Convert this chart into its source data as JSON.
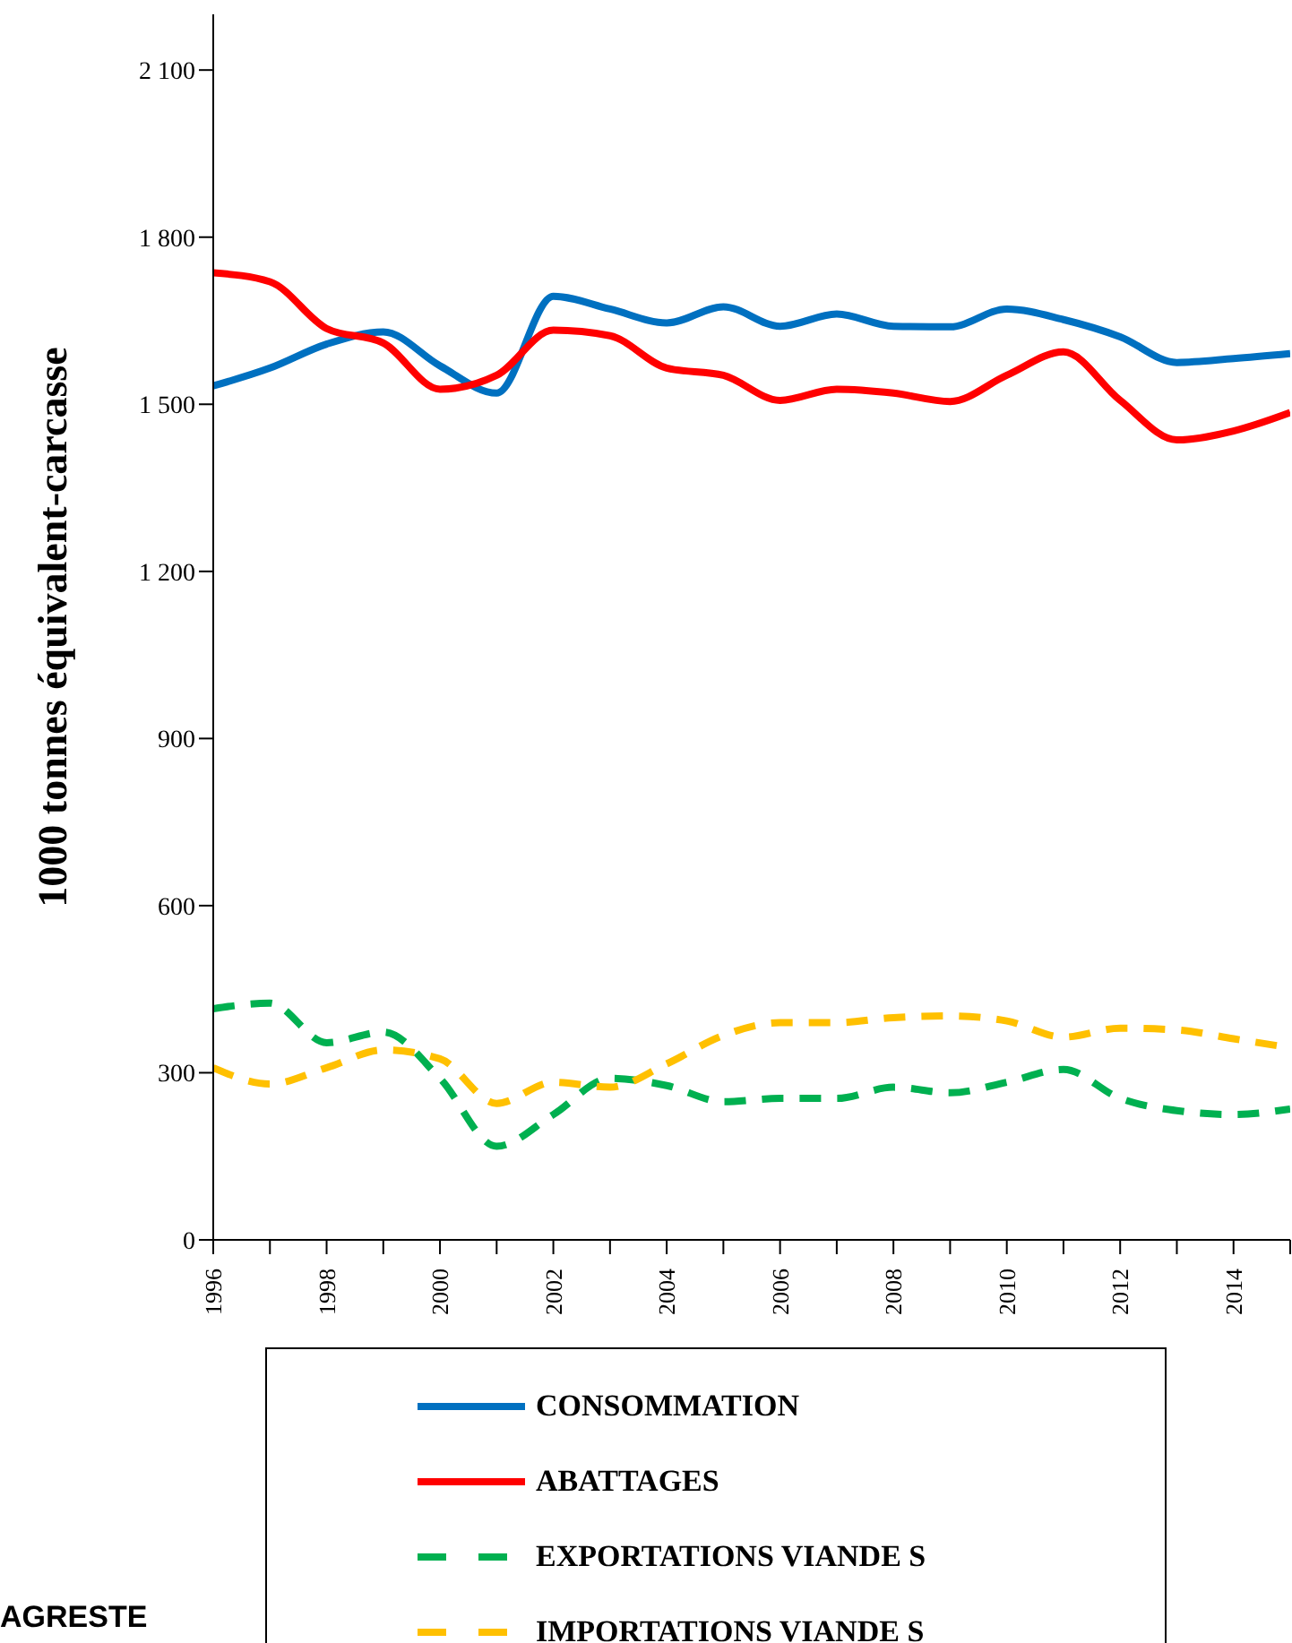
{
  "chart_data": {
    "type": "line",
    "ylabel": "1000 tonnes équivalent-carcasse",
    "x": [
      1996,
      1997,
      1998,
      1999,
      2000,
      2001,
      2002,
      2003,
      2004,
      2005,
      2006,
      2007,
      2008,
      2009,
      2010,
      2011,
      2012,
      2013,
      2014,
      2015
    ],
    "series": [
      {
        "name": "CONSOMMATION",
        "color": "#0070c0",
        "line_style": "solid",
        "values": [
          1533,
          1565,
          1608,
          1630,
          1569,
          1520,
          1694,
          1671,
          1646,
          1675,
          1640,
          1662,
          1640,
          1639,
          1671,
          1652,
          1621,
          1575,
          1582,
          1591
        ]
      },
      {
        "name": "ABATTAGES",
        "color": "#ff0000",
        "line_style": "solid",
        "values": [
          1736,
          1720,
          1636,
          1610,
          1527,
          1552,
          1633,
          1623,
          1565,
          1552,
          1507,
          1527,
          1520,
          1505,
          1552,
          1594,
          1507,
          1436,
          1452,
          1485
        ]
      },
      {
        "name": "EXPORTATIONS VIANDE S",
        "color": "#00b050",
        "line_style": "dashed",
        "values": [
          415,
          425,
          354,
          373,
          290,
          168,
          225,
          290,
          277,
          248,
          254,
          254,
          274,
          264,
          283,
          306,
          254,
          232,
          225,
          235
        ]
      },
      {
        "name": "IMPORTATIONS VIANDE S",
        "color": "#ffc000",
        "line_style": "dashed",
        "values": [
          309,
          280,
          309,
          341,
          325,
          245,
          283,
          274,
          316,
          367,
          390,
          390,
          399,
          402,
          393,
          364,
          380,
          377,
          361,
          345
        ]
      }
    ],
    "xlim": [
      1996,
      2015
    ],
    "xticks": [
      1996,
      {
        "value": 1997,
        "label": null
      },
      1998,
      {
        "value": 1999,
        "label": null
      },
      2000,
      {
        "value": 2001,
        "label": null
      },
      2002,
      {
        "value": 2003,
        "label": null
      },
      2004,
      {
        "value": 2005,
        "label": null
      },
      2006,
      {
        "value": 2007,
        "label": null
      },
      2008,
      {
        "value": 2009,
        "label": null
      },
      2010,
      {
        "value": 2011,
        "label": null
      },
      2012,
      {
        "value": 2013,
        "label": null
      },
      2014,
      {
        "value": 2015,
        "label": null
      }
    ],
    "ylim": [
      0,
      2200
    ],
    "yticks": [
      0,
      300,
      600,
      900,
      {
        "value": 1200,
        "label": "1 200"
      },
      {
        "value": 1500,
        "label": "1 500"
      },
      {
        "value": 1800,
        "label": "1 800"
      },
      {
        "value": 2100,
        "label": "2 100"
      }
    ],
    "grid": false,
    "legend": "bottom",
    "marker": "none",
    "annotations": [
      "AGRESTE"
    ]
  }
}
